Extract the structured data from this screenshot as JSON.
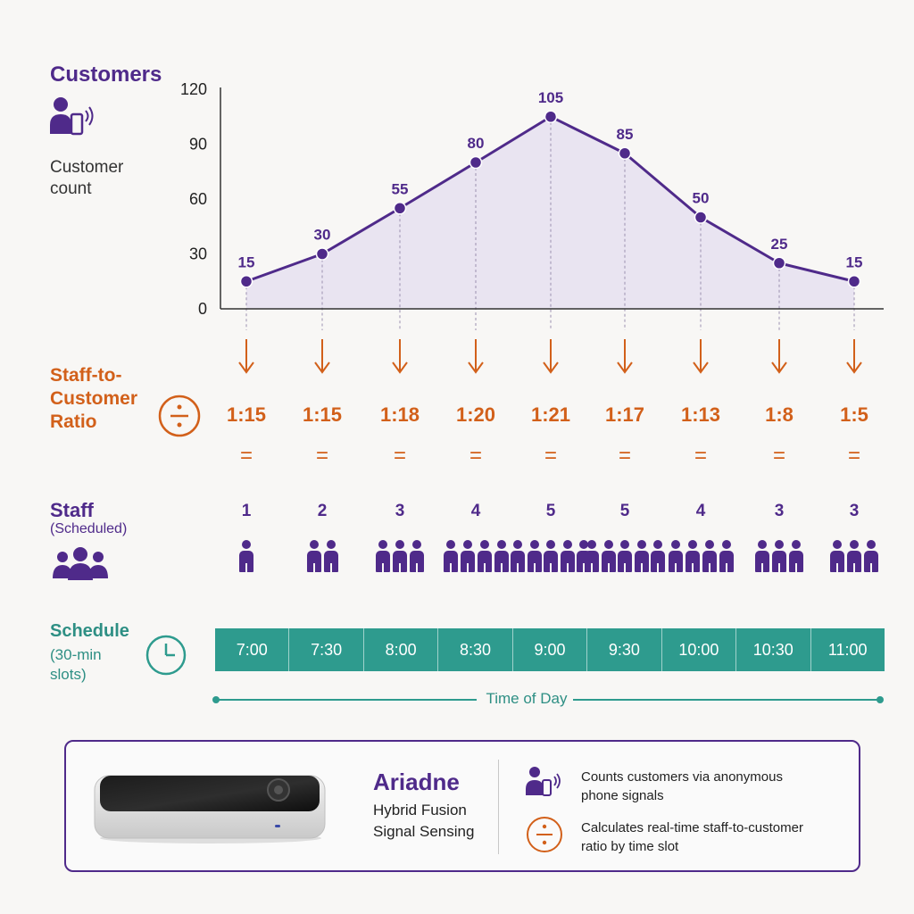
{
  "rows": {
    "customers": {
      "title": "Customers",
      "sub": [
        "Customer",
        "count"
      ]
    },
    "ratio": {
      "title": [
        "Staff-to-",
        "Customer",
        "Ratio"
      ],
      "ratios": [
        "1:15",
        "1:15",
        "1:18",
        "1:20",
        "1:21",
        "1:17",
        "1:13",
        "1:8",
        "1:5"
      ],
      "equals": "="
    },
    "staff": {
      "title": "Staff",
      "sub": "(Scheduled)",
      "counts": [
        1,
        2,
        3,
        4,
        5,
        5,
        4,
        3,
        3
      ]
    },
    "schedule": {
      "title": "Schedule",
      "sub": [
        "(30-min",
        "slots)"
      ],
      "slots": [
        "7:00",
        "7:30",
        "8:00",
        "8:30",
        "9:00",
        "9:30",
        "10:00",
        "10:30",
        "11:00"
      ],
      "axis_label": "Time of Day"
    }
  },
  "chart_data": {
    "type": "area",
    "x": [
      "7:00",
      "7:30",
      "8:00",
      "8:30",
      "9:00",
      "9:30",
      "10:00",
      "10:30",
      "11:00"
    ],
    "values": [
      15,
      30,
      55,
      80,
      105,
      85,
      50,
      25,
      15
    ],
    "yticks": [
      0,
      30,
      60,
      90,
      120
    ],
    "ylim": [
      0,
      120
    ],
    "grid": false
  },
  "colors": {
    "purple": "#4f2a8a",
    "orange": "#d2601a",
    "teal": "#2e9b8e",
    "area": "#e6e0f0"
  },
  "icons": [
    "person-phone-icon",
    "divide-icon",
    "group-icon",
    "clock-icon",
    "down-arrow-icon",
    "sensor-device-icon"
  ],
  "panel": {
    "name": "Ariadne",
    "line1": "Hybrid Fusion",
    "line2": "Signal Sensing",
    "feature1": [
      "Counts customers via anonymous",
      "phone signals"
    ],
    "feature2": [
      "Calculates real-time staff-to-customer",
      "ratio by time slot"
    ]
  }
}
